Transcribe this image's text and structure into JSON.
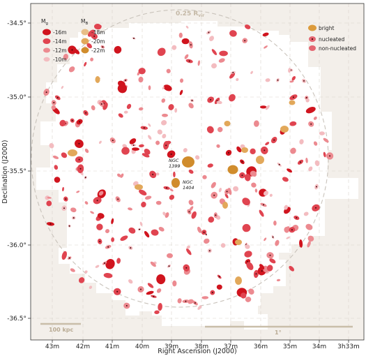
{
  "chart_data": {
    "type": "scatter",
    "xlabel": "Right Ascension (J2000)",
    "ylabel": "Declination (J2000)",
    "x_ticks": [
      "43m",
      "42m",
      "41m",
      "40m",
      "39m",
      "38m",
      "37m",
      "36m",
      "35m",
      "34m",
      "3h33m"
    ],
    "y_ticks": [
      "-34.5°",
      "-35.0°",
      "-35.5°",
      "-36.0°",
      "-36.5°"
    ],
    "grid": true,
    "legend_mag": {
      "mg_title": "M",
      "mg_sub": "g",
      "mb_title": "M",
      "mb_sub": "B",
      "mg_items": [
        "-16m",
        "-14m",
        "-12m",
        "-10m"
      ],
      "mb_items": [
        "-18m",
        "-20m",
        "-22m"
      ]
    },
    "legend_type": [
      "bright",
      "nucleated",
      "non-nucleated"
    ],
    "circle_label": "0.25 R",
    "circle_sub": "vir",
    "scale_bars": [
      "100 kpc",
      "1°"
    ],
    "annotations": [
      {
        "name": "NGC",
        "id": "1399"
      },
      {
        "name": "NGC",
        "id": "1404"
      }
    ],
    "colors": {
      "dwarf_bright": "#d0141e",
      "dwarf_mid": "#e04450",
      "dwarf_light": "#ec8a90",
      "dwarf_faint": "#f3bcc0",
      "giant": "#dc9b3c",
      "background": "#f3efea",
      "footprint": "#ffffff"
    }
  }
}
